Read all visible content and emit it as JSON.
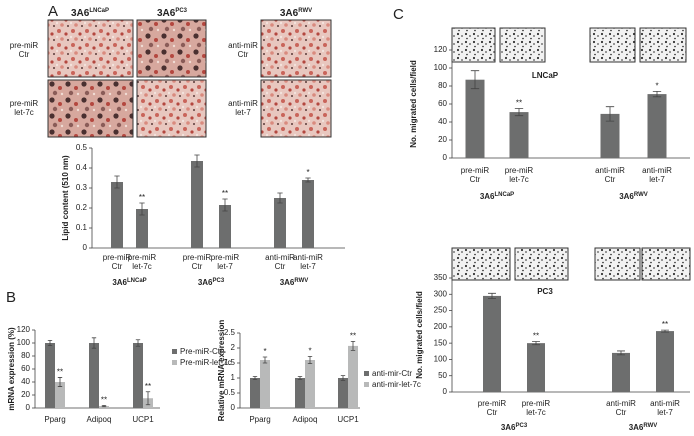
{
  "figure": {
    "panel_labels": [
      "A",
      "B",
      "C"
    ],
    "micrographs": {
      "columns": [
        {
          "name": "3A6",
          "sup": "LNCaP"
        },
        {
          "name": "3A6",
          "sup": "PC3"
        },
        {
          "name": "3A6",
          "sup": "RWV"
        }
      ],
      "rows": [
        [
          "pre-miR",
          "Ctr"
        ],
        [
          "pre-miR",
          "let-7c"
        ],
        [
          "anti-miR",
          "Ctr"
        ],
        [
          "anti-miR",
          "let-7"
        ]
      ]
    }
  },
  "chart_data": [
    {
      "type": "bar",
      "y_label": "Lipid content (510 nm)",
      "categories": [
        [
          "pre-miR",
          "Ctr"
        ],
        [
          "pre-miR",
          "let-7c"
        ],
        [
          "pre-miR",
          "Ctr"
        ],
        [
          "pre-miR",
          "let-7"
        ],
        [
          "anti-miR",
          "Ctr"
        ],
        [
          "anti-miR",
          "let-7"
        ]
      ],
      "values": [
        0.33,
        0.195,
        0.435,
        0.215,
        0.25,
        0.34
      ],
      "errors": [
        0.03,
        0.03,
        0.03,
        0.03,
        0.025,
        0.01
      ],
      "color": "#6d6e6e",
      "groups": [
        {
          "name": "3A6",
          "sup": "LNCaP"
        },
        {
          "name": "3A6",
          "sup": "PC3"
        },
        {
          "name": "3A6",
          "sup": "RWV"
        }
      ],
      "annotations": [
        {
          "index": 1,
          "text": "**"
        },
        {
          "index": 3,
          "text": "**"
        },
        {
          "index": 5,
          "text": "*"
        }
      ],
      "ylim": [
        0,
        0.5
      ],
      "yticks": [
        0,
        0.1,
        0.2,
        0.3,
        0.4,
        0.5
      ]
    },
    {
      "type": "bar",
      "y_label": "mRNA expression (%)",
      "categories": [
        "Pparg",
        "Adipoq",
        "UCP1"
      ],
      "series": [
        {
          "name": "Pre-miR-Ctr",
          "color": "#6d6e6e",
          "values": [
            100,
            100,
            100
          ],
          "errors": [
            4,
            8,
            5
          ]
        },
        {
          "name": "Pre-miR-let-7c",
          "color": "#b8b9b9",
          "values": [
            40,
            3,
            15
          ],
          "errors": [
            7,
            1,
            10
          ]
        }
      ],
      "annotations": [
        {
          "series": 1,
          "index": 0,
          "text": "**"
        },
        {
          "series": 1,
          "index": 1,
          "text": "**"
        },
        {
          "series": 1,
          "index": 2,
          "text": "**"
        }
      ],
      "ylim": [
        0,
        120
      ],
      "yticks": [
        0,
        20,
        40,
        60,
        80,
        100,
        120
      ]
    },
    {
      "type": "bar",
      "y_label": "Relative mRNA expression",
      "categories": [
        "Pparg",
        "Adipoq",
        "UCP1"
      ],
      "series": [
        {
          "name": "anti-mir-Ctr",
          "color": "#6d6e6e",
          "values": [
            1,
            1,
            1
          ],
          "errors": [
            0.05,
            0.05,
            0.08
          ]
        },
        {
          "name": "anti-mir-let-7c",
          "color": "#b8b9b9",
          "values": [
            1.6,
            1.6,
            2.07
          ],
          "errors": [
            0.1,
            0.12,
            0.15
          ]
        }
      ],
      "annotations": [
        {
          "series": 1,
          "index": 0,
          "text": "*"
        },
        {
          "series": 1,
          "index": 1,
          "text": "*"
        },
        {
          "series": 1,
          "index": 2,
          "text": "**"
        }
      ],
      "ylim": [
        0,
        2.5
      ],
      "yticks": [
        0,
        0.5,
        1,
        1.5,
        2,
        2.5
      ]
    },
    {
      "type": "bar",
      "title": "LNCaP",
      "y_label": "No. migrated cells/field",
      "categories": [
        [
          "pre-miR",
          "Ctr"
        ],
        [
          "pre-miR",
          "let-7c"
        ],
        [
          "anti-miR",
          "Ctr"
        ],
        [
          "anti-miR",
          "let-7"
        ]
      ],
      "values": [
        87,
        51,
        49,
        71
      ],
      "errors": [
        10,
        4,
        8,
        3
      ],
      "color": "#6d6e6e",
      "groups": [
        {
          "name": "3A6",
          "sup": "LNCaP"
        },
        {
          "name": "3A6",
          "sup": "RWV"
        }
      ],
      "annotations": [
        {
          "index": 1,
          "text": "**"
        },
        {
          "index": 3,
          "text": "*"
        }
      ],
      "ylim": [
        0,
        120
      ],
      "yticks": [
        0,
        20,
        40,
        60,
        80,
        100,
        120
      ]
    },
    {
      "type": "bar",
      "title": "PC3",
      "y_label": "No. migrated cells/field",
      "categories": [
        [
          "pre-miR",
          "Ctr"
        ],
        [
          "pre-miR",
          "let-7c"
        ],
        [
          "anti-miR",
          "Ctr"
        ],
        [
          "anti-miR",
          "let-7"
        ]
      ],
      "values": [
        295,
        150,
        120,
        187
      ],
      "errors": [
        8,
        5,
        6,
        3
      ],
      "color": "#6d6e6e",
      "groups": [
        {
          "name": "3A6",
          "sup": "PC3"
        },
        {
          "name": "3A6",
          "sup": "RWV"
        }
      ],
      "annotations": [
        {
          "index": 1,
          "text": "**"
        },
        {
          "index": 3,
          "text": "**"
        }
      ],
      "ylim": [
        0,
        350
      ],
      "yticks": [
        0,
        50,
        100,
        150,
        200,
        250,
        300,
        350
      ]
    }
  ]
}
